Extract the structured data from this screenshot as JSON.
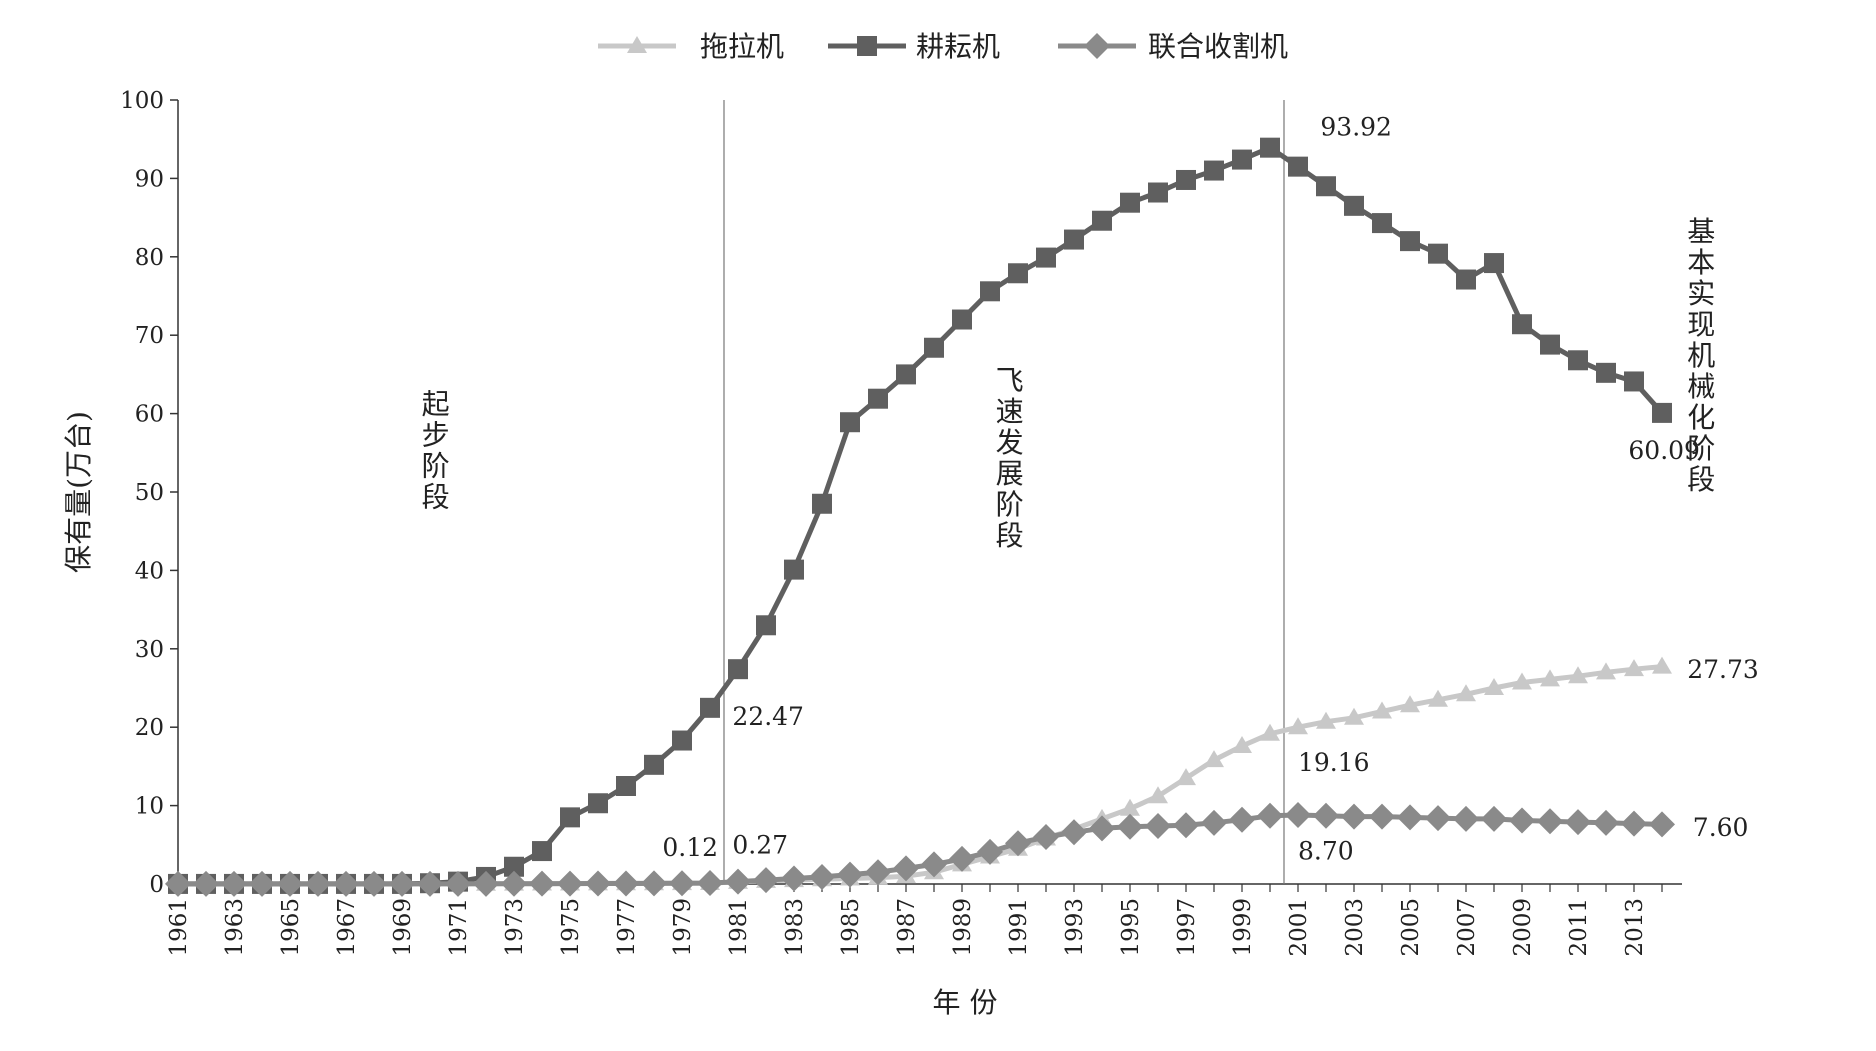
{
  "chart_data": {
    "type": "line",
    "title": "",
    "xlabel": "年 份",
    "ylabel": "保有量(万台)",
    "ylim": [
      0,
      100
    ],
    "yticks": [
      0,
      10,
      20,
      30,
      40,
      50,
      60,
      70,
      80,
      90,
      100
    ],
    "x": [
      1961,
      1962,
      1963,
      1964,
      1965,
      1966,
      1967,
      1968,
      1969,
      1970,
      1971,
      1972,
      1973,
      1974,
      1975,
      1976,
      1977,
      1978,
      1979,
      1980,
      1981,
      1982,
      1983,
      1984,
      1985,
      1986,
      1987,
      1988,
      1989,
      1990,
      1991,
      1992,
      1993,
      1994,
      1995,
      1996,
      1997,
      1998,
      1999,
      2000,
      2001,
      2002,
      2003,
      2004,
      2005,
      2006,
      2007,
      2008,
      2009,
      2010,
      2011,
      2012,
      2013,
      2014
    ],
    "xtick_labels": [
      1961,
      1963,
      1965,
      1967,
      1969,
      1971,
      1973,
      1975,
      1977,
      1979,
      1981,
      1983,
      1985,
      1987,
      1989,
      1991,
      1993,
      1995,
      1997,
      1999,
      2001,
      2003,
      2005,
      2007,
      2009,
      2011,
      2013
    ],
    "grid": false,
    "legend_position": "top",
    "series": [
      {
        "name": "拖拉机",
        "color": "#c8c8c8",
        "marker": "triangle",
        "values": [
          0.01,
          0.01,
          0.01,
          0.01,
          0.01,
          0.01,
          0.01,
          0.01,
          0.01,
          0.02,
          0.02,
          0.03,
          0.05,
          0.06,
          0.07,
          0.08,
          0.09,
          0.1,
          0.11,
          0.12,
          0.27,
          0.4,
          0.5,
          0.6,
          0.7,
          0.8,
          1.0,
          1.5,
          2.5,
          3.5,
          4.5,
          5.8,
          7.0,
          8.3,
          9.6,
          11.2,
          13.5,
          15.8,
          17.6,
          19.16,
          20.0,
          20.7,
          21.2,
          22.0,
          22.8,
          23.5,
          24.2,
          25.0,
          25.7,
          26.1,
          26.5,
          27.0,
          27.4,
          27.73
        ]
      },
      {
        "name": "耕耘机",
        "color": "#5f5f5f",
        "marker": "square",
        "values": [
          0.01,
          0.01,
          0.01,
          0.01,
          0.01,
          0.01,
          0.01,
          0.01,
          0.01,
          0.1,
          0.3,
          0.9,
          2.2,
          4.2,
          8.5,
          10.3,
          12.5,
          15.2,
          18.3,
          22.47,
          27.4,
          33.0,
          40.1,
          48.5,
          58.9,
          61.9,
          65.0,
          68.4,
          72.0,
          75.6,
          77.9,
          79.9,
          82.2,
          84.6,
          86.9,
          88.2,
          89.8,
          91.0,
          92.4,
          93.92,
          91.5,
          89.0,
          86.5,
          84.3,
          82.0,
          80.4,
          77.1,
          79.2,
          71.4,
          68.8,
          66.8,
          65.2,
          64.1,
          60.09
        ]
      },
      {
        "name": "联合收割机",
        "color": "#8a8a8a",
        "marker": "diamond",
        "values": [
          0.01,
          0.01,
          0.01,
          0.01,
          0.01,
          0.01,
          0.01,
          0.01,
          0.01,
          0.01,
          0.01,
          0.02,
          0.03,
          0.04,
          0.05,
          0.06,
          0.07,
          0.08,
          0.1,
          0.12,
          0.3,
          0.5,
          0.7,
          0.9,
          1.2,
          1.5,
          2.0,
          2.5,
          3.2,
          4.1,
          5.2,
          6.0,
          6.6,
          7.1,
          7.3,
          7.4,
          7.5,
          7.8,
          8.2,
          8.7,
          8.8,
          8.7,
          8.6,
          8.6,
          8.5,
          8.4,
          8.3,
          8.3,
          8.1,
          8.0,
          7.9,
          7.8,
          7.7,
          7.6
        ]
      }
    ],
    "stage_dividers": [
      1980.5,
      2000.5
    ],
    "stages": [
      {
        "label": "起步阶段",
        "x": 1970.2,
        "y": 60
      },
      {
        "label": "飞速发展阶段",
        "x": 1990.7,
        "y": 63
      },
      {
        "label": "基本实现机械化阶段",
        "x": 2015.4,
        "y": 82
      }
    ],
    "annotations": [
      {
        "text": "93.92",
        "x": 2001.8,
        "y": 95.5
      },
      {
        "text": "60.09",
        "x": 2012.8,
        "y": 54.2
      },
      {
        "text": "22.47",
        "x": 1980.8,
        "y": 20.3
      },
      {
        "text": "27.73",
        "x": 2014.9,
        "y": 26.3
      },
      {
        "text": "19.16",
        "x": 2001.0,
        "y": 14.4
      },
      {
        "text": "7.60",
        "x": 2015.1,
        "y": 6.1
      },
      {
        "text": "8.70",
        "x": 2001.0,
        "y": 3.1
      },
      {
        "text": "0.12",
        "x": 1978.3,
        "y": 3.6
      },
      {
        "text": "0.27",
        "x": 1980.8,
        "y": 3.9
      }
    ]
  }
}
